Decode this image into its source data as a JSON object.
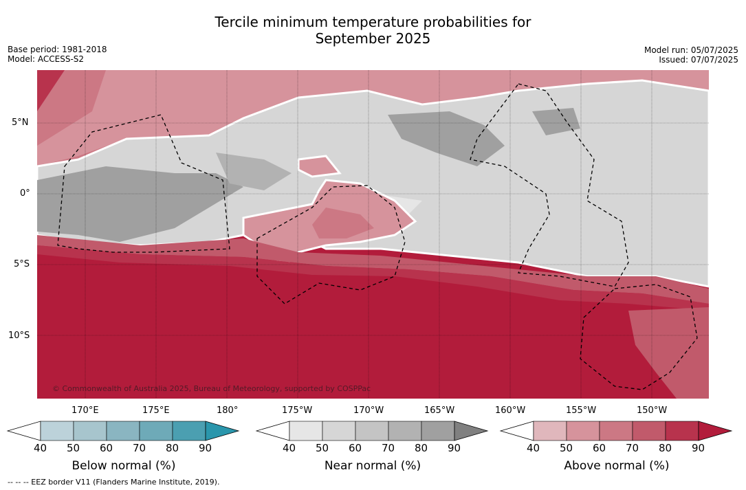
{
  "title_line1": "Tercile minimum temperature probabilities for",
  "title_line2": "September 2025",
  "base_period": "Base period: 1981-2018",
  "model": "Model: ACCESS-S2",
  "model_run": "Model run: 05/07/2025",
  "issued": "Issued: 07/07/2025",
  "copyright": "© Commonwealth of Australia 2025, Bureau of Meteorology, supported by COSPPac",
  "lat_labels": [
    "5°N",
    "0°",
    "5°S",
    "10°S"
  ],
  "lon_labels": [
    "170°E",
    "175°E",
    "180°",
    "175°W",
    "170°W",
    "165°W",
    "160°W",
    "155°W",
    "150°W"
  ],
  "colorbars": [
    {
      "label": "Below normal (%)",
      "ticks": [
        "40",
        "50",
        "60",
        "70",
        "80",
        "90"
      ],
      "colors": [
        "#ffffff",
        "#bcd2da",
        "#a7c5cd",
        "#8ab5c1",
        "#6eaab8",
        "#4b9fb1",
        "#2a96ac"
      ]
    },
    {
      "label": "Near normal (%)",
      "ticks": [
        "40",
        "50",
        "60",
        "70",
        "80",
        "90"
      ],
      "colors": [
        "#ffffff",
        "#e6e6e6",
        "#d6d6d6",
        "#c4c4c4",
        "#b2b2b2",
        "#a0a0a0",
        "#808080"
      ]
    },
    {
      "label": "Above normal (%)",
      "ticks": [
        "40",
        "50",
        "60",
        "70",
        "80",
        "90"
      ],
      "colors": [
        "#ffffff",
        "#e0b7bc",
        "#d6939c",
        "#cc7884",
        "#c15a6b",
        "#b8334d",
        "#b21c3b"
      ]
    }
  ],
  "footnote": "-- -- -- EEZ border V11 (Flanders Marine Institute, 2019)."
}
